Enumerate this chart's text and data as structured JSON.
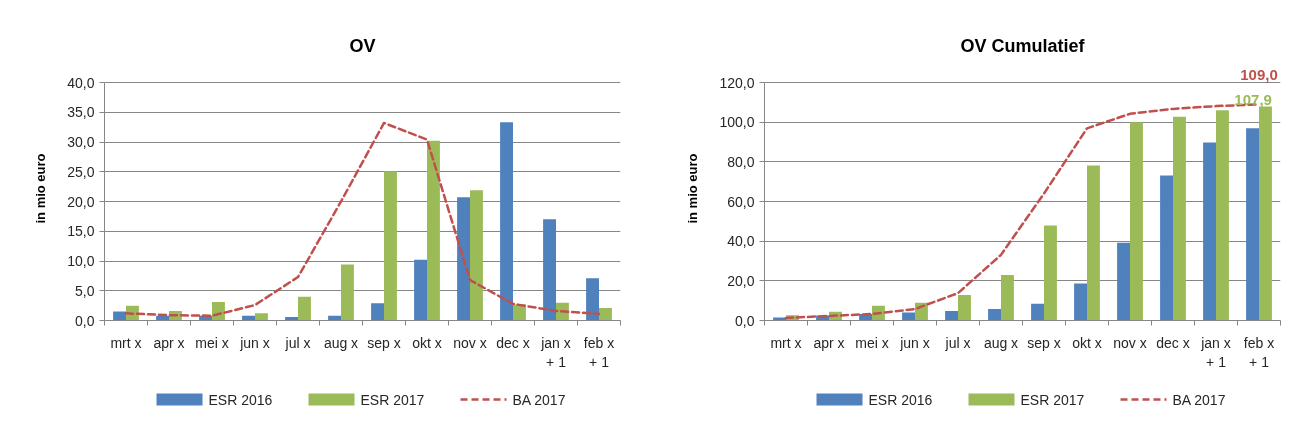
{
  "chart_data": [
    {
      "type": "bar",
      "title": "OV",
      "ylabel": "in mio euro",
      "categories": [
        "mrt x",
        "apr x",
        "mei x",
        "jun x",
        "jul x",
        "aug x",
        "sep x",
        "okt x",
        "nov x",
        "dec x",
        "jan x + 1",
        "feb x + 1"
      ],
      "ylim": [
        0,
        40
      ],
      "yticks": [
        {
          "value": 0,
          "label": "0,0"
        },
        {
          "value": 5,
          "label": "5,0"
        },
        {
          "value": 10,
          "label": "10,0"
        },
        {
          "value": 15,
          "label": "15,0"
        },
        {
          "value": 20,
          "label": "20,0"
        },
        {
          "value": 25,
          "label": "25,0"
        },
        {
          "value": 30,
          "label": "30,0"
        },
        {
          "value": 35,
          "label": "35,0"
        },
        {
          "value": 40,
          "label": "40,0"
        }
      ],
      "grid": "y",
      "legend": "bottom",
      "series": [
        {
          "name": "ESR 2016",
          "color": "#4f81bd",
          "values": [
            1.5,
            0.8,
            0.8,
            0.8,
            0.6,
            0.8,
            2.9,
            10.2,
            20.7,
            33.3,
            17.0,
            7.1
          ]
        },
        {
          "name": "ESR 2017",
          "color": "#9bbb59",
          "values": [
            2.5,
            1.6,
            3.1,
            1.2,
            4.0,
            9.4,
            25.1,
            30.2,
            21.9,
            2.7,
            3.0,
            2.1
          ]
        },
        {
          "name": "BA 2017",
          "color": "#c0504d",
          "type": "line",
          "line_style": "dashed",
          "values": [
            1.2,
            0.9,
            0.8,
            2.6,
            7.3,
            20.0,
            33.2,
            30.4,
            6.8,
            2.8,
            1.6,
            1.1
          ]
        }
      ]
    },
    {
      "type": "bar",
      "title": "OV Cumulatief",
      "ylabel": "in mio euro",
      "categories": [
        "mrt x",
        "apr x",
        "mei x",
        "jun x",
        "jul x",
        "aug x",
        "sep x",
        "okt x",
        "nov x",
        "dec x",
        "jan x + 1",
        "feb x + 1"
      ],
      "ylim": [
        0,
        120
      ],
      "yticks": [
        {
          "value": 0,
          "label": "0,0"
        },
        {
          "value": 20,
          "label": "20,0"
        },
        {
          "value": 40,
          "label": "40,0"
        },
        {
          "value": 60,
          "label": "60,0"
        },
        {
          "value": 80,
          "label": "80,0"
        },
        {
          "value": 100,
          "label": "100,0"
        },
        {
          "value": 120,
          "label": "120,0"
        }
      ],
      "grid": "y",
      "legend": "bottom",
      "series": [
        {
          "name": "ESR 2016",
          "color": "#4f81bd",
          "values": [
            1.5,
            2.5,
            3.3,
            4.0,
            4.8,
            5.8,
            8.5,
            18.7,
            39.2,
            73.1,
            89.8,
            96.9
          ]
        },
        {
          "name": "ESR 2017",
          "color": "#9bbb59",
          "values": [
            2.7,
            4.4,
            7.5,
            9.0,
            12.9,
            22.9,
            47.9,
            78.1,
            100.0,
            102.7,
            106.0,
            107.9
          ],
          "value_labels": [
            null,
            null,
            null,
            null,
            null,
            null,
            null,
            null,
            null,
            null,
            null,
            "107,9"
          ]
        },
        {
          "name": "BA 2017",
          "color": "#c0504d",
          "type": "line",
          "line_style": "dashed",
          "values": [
            1.3,
            2.3,
            3.3,
            5.8,
            13.8,
            33.1,
            64.0,
            96.9,
            104.2,
            106.7,
            108.1,
            109.0
          ],
          "value_labels": [
            null,
            null,
            null,
            null,
            null,
            null,
            null,
            null,
            null,
            null,
            null,
            "109,0"
          ]
        }
      ]
    }
  ]
}
